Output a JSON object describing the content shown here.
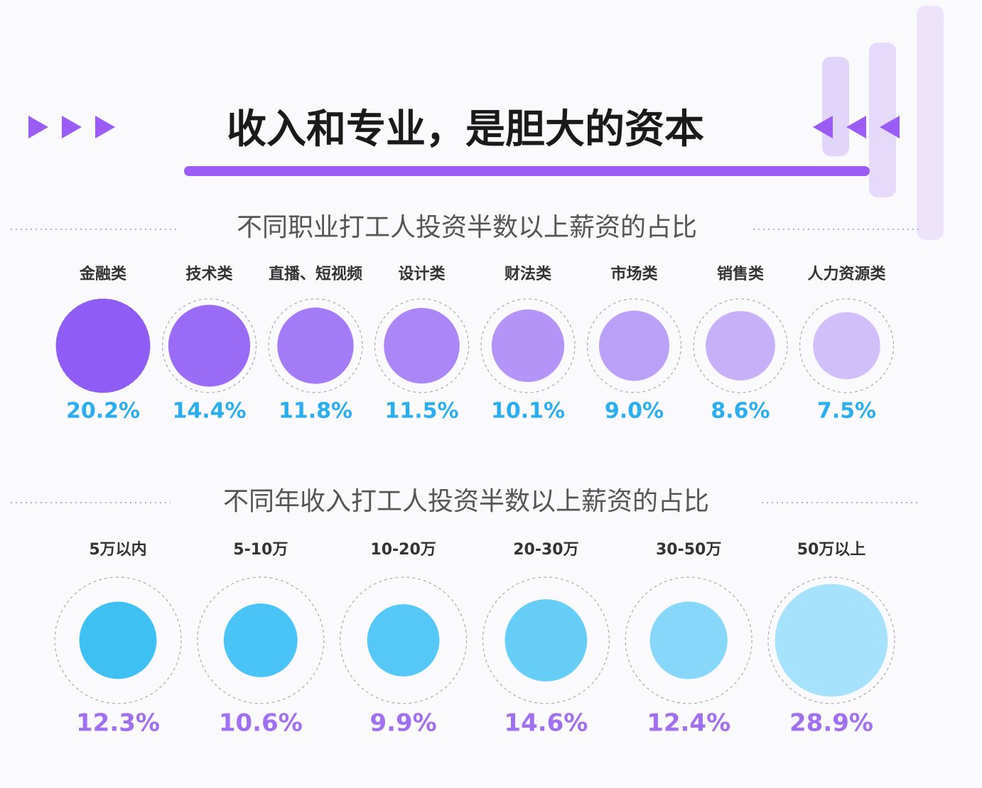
{
  "title": "收入和专业，是胆大的资本",
  "chart_data": [
    {
      "type": "bubble",
      "title": "不同职业打工人投资半数以上薪资的占比",
      "categories": [
        "金融类",
        "技术类",
        "直播、短视频",
        "设计类",
        "财法类",
        "市场类",
        "销售类",
        "人力资源类"
      ],
      "values": [
        20.2,
        14.4,
        11.8,
        11.5,
        10.1,
        9.0,
        8.6,
        7.5
      ],
      "value_labels": [
        "20.2%",
        "14.4%",
        "11.8%",
        "11.5%",
        "10.1%",
        "9.0%",
        "8.6%",
        "7.5%"
      ],
      "colors": [
        "#8f5cf5",
        "#9a6cf6",
        "#a47bf6",
        "#ab86f6",
        "#b494f7",
        "#bba0f7",
        "#c6b0f8",
        "#d0bff8"
      ],
      "label_color": "#2aaef0"
    },
    {
      "type": "bubble",
      "title": "不同年收入打工人投资半数以上薪资的占比",
      "categories": [
        "5万以内",
        "5-10万",
        "10-20万",
        "20-30万",
        "30-50万",
        "50万以上"
      ],
      "values": [
        12.3,
        10.6,
        9.9,
        14.6,
        12.4,
        28.9
      ],
      "value_labels": [
        "12.3%",
        "10.6%",
        "9.9%",
        "14.6%",
        "12.4%",
        "28.9%"
      ],
      "colors": [
        "#3fc0f3",
        "#4ac4f6",
        "#56c8f8",
        "#66cdf7",
        "#86d7f9",
        "#a6e2fb"
      ],
      "label_color": "#a070f0"
    }
  ]
}
